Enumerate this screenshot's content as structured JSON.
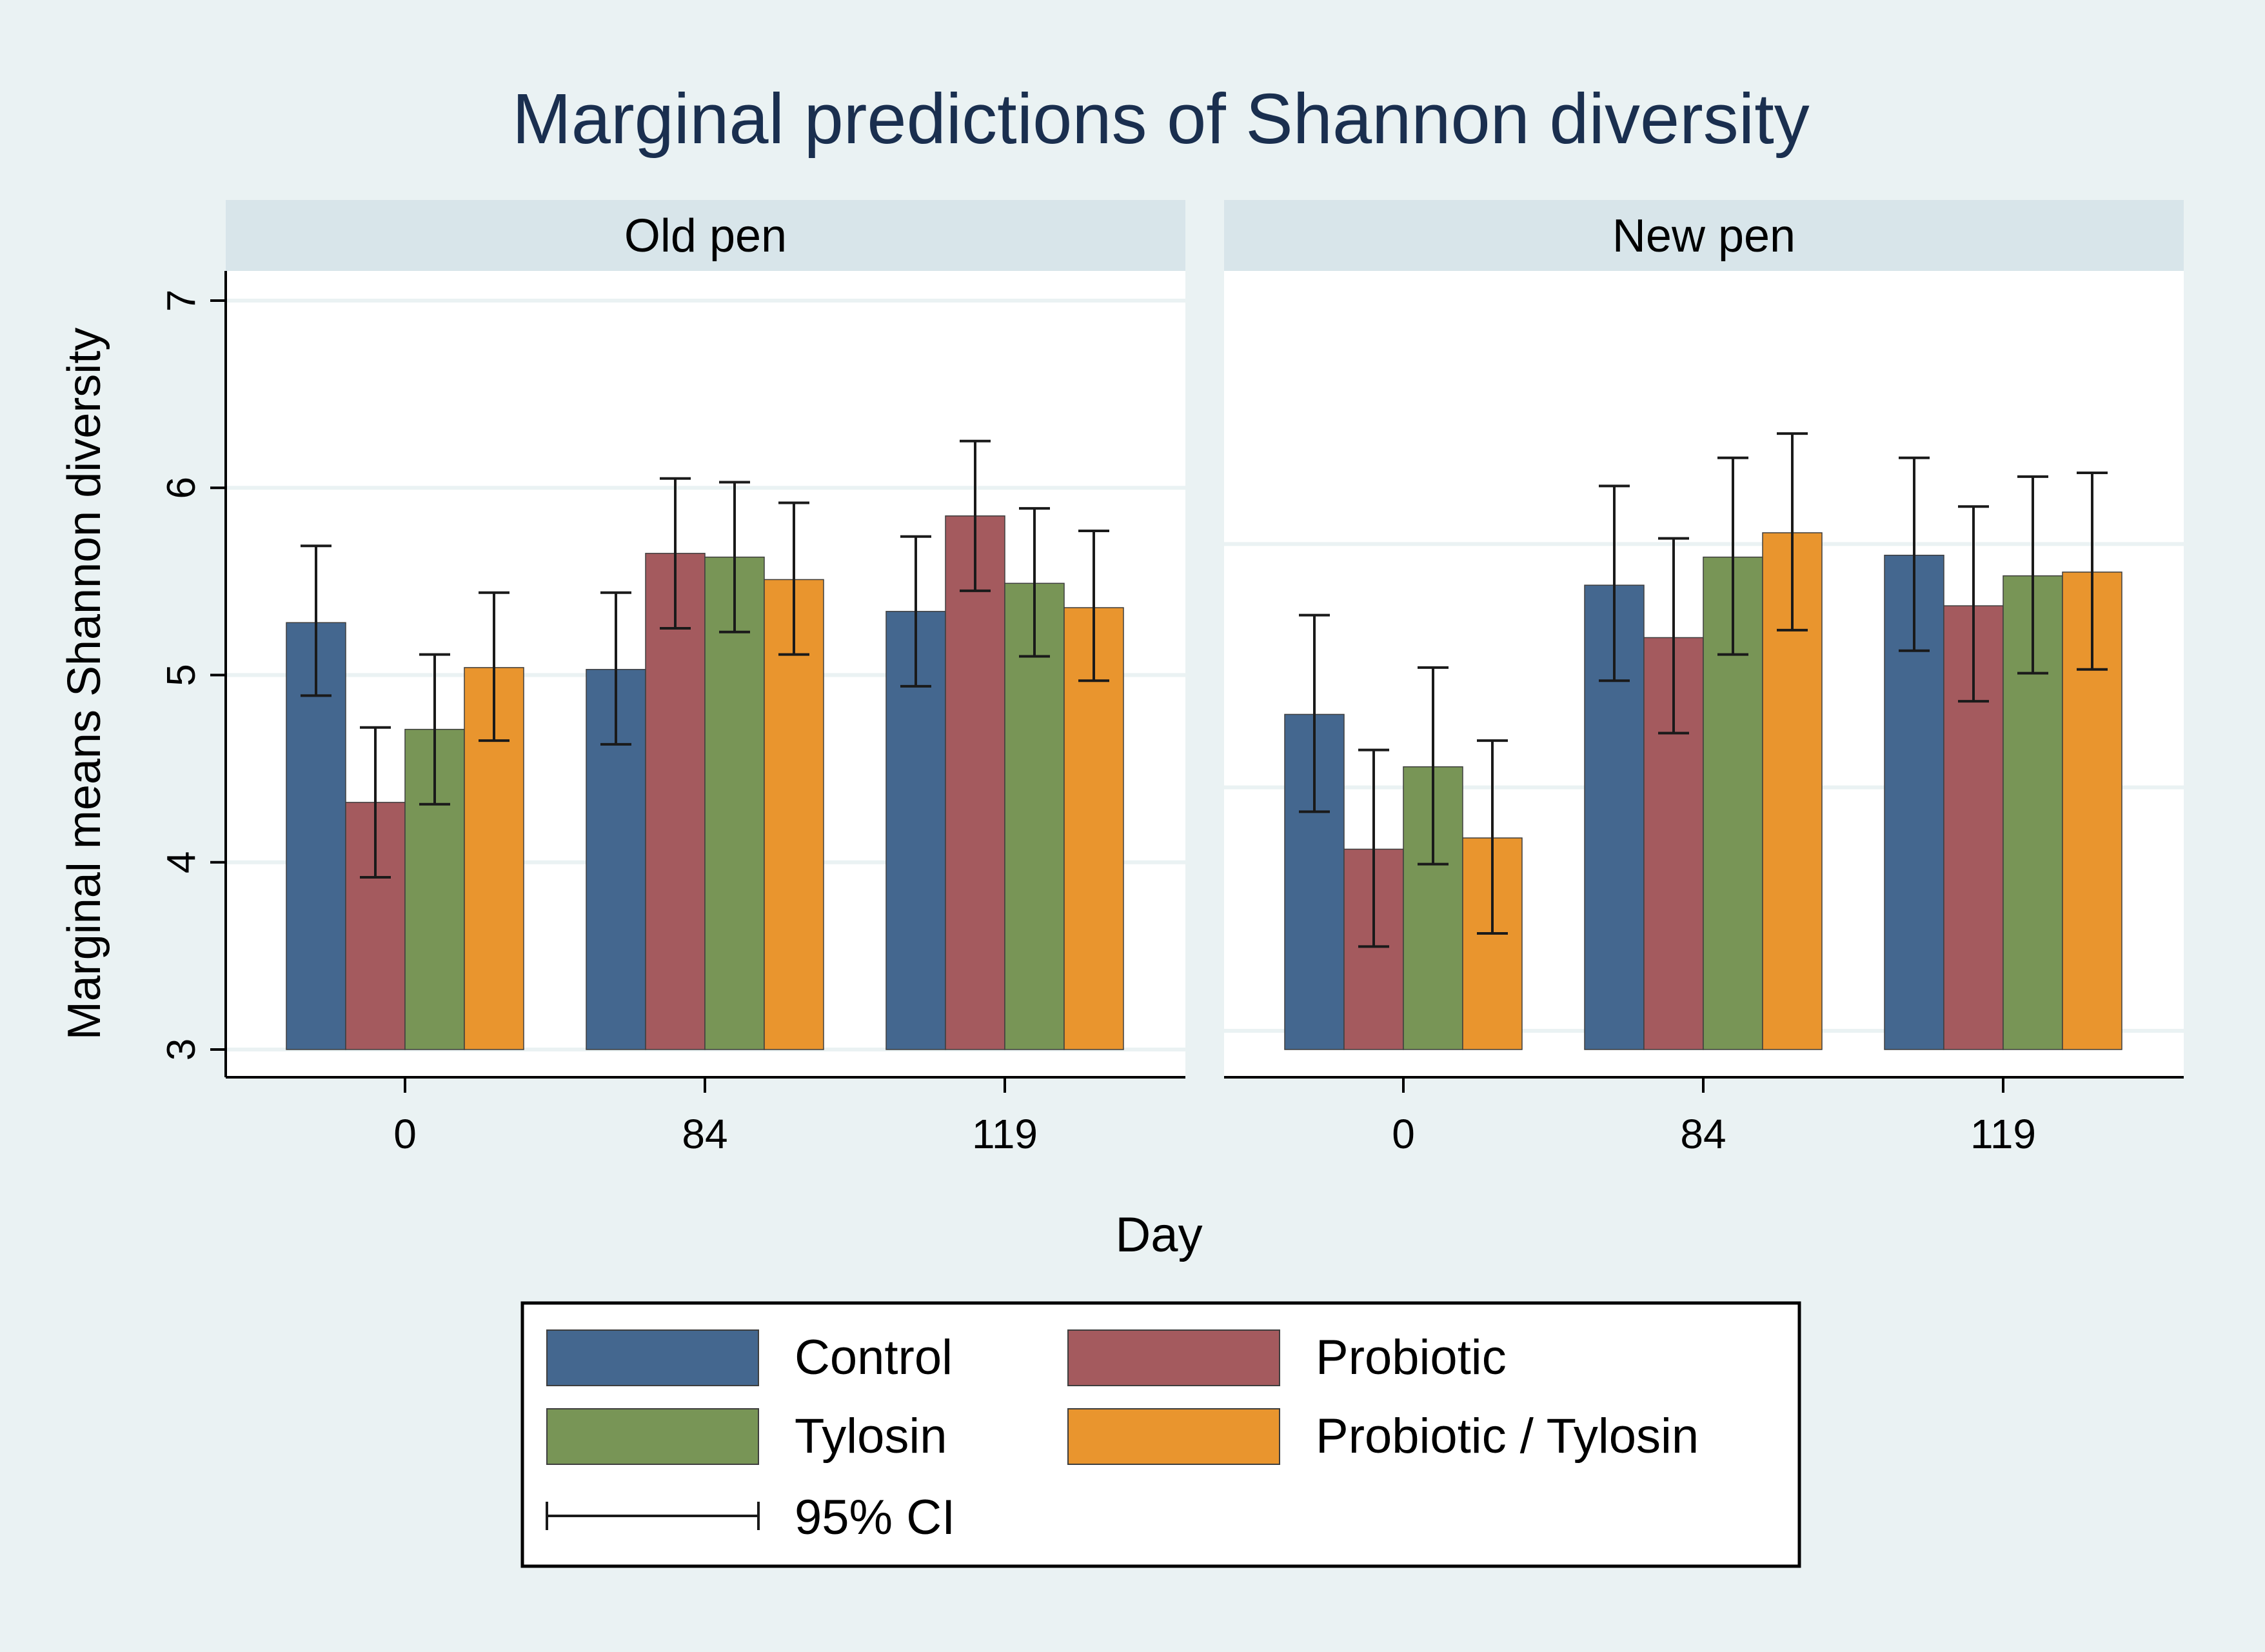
{
  "chart_data": {
    "type": "bar",
    "title": "Marginal predictions of Shannon diversity",
    "ylabel": "Marginal means Shannon diversity",
    "xlabel": "Day",
    "ylim": [
      3,
      7
    ],
    "yticks": [
      3,
      4,
      5,
      6,
      7
    ],
    "categories": [
      "0",
      "84",
      "119"
    ],
    "panels": [
      {
        "name": "Old pen",
        "series": [
          {
            "name": "Control",
            "values": [
              5.28,
              5.03,
              5.34
            ],
            "ci_low": [
              4.89,
              4.63,
              4.94
            ],
            "ci_high": [
              5.69,
              5.44,
              5.74
            ]
          },
          {
            "name": "Probiotic",
            "values": [
              4.32,
              5.65,
              5.85
            ],
            "ci_low": [
              3.92,
              5.25,
              5.45
            ],
            "ci_high": [
              4.72,
              6.05,
              6.25
            ]
          },
          {
            "name": "Tylosin",
            "values": [
              4.71,
              5.63,
              5.49
            ],
            "ci_low": [
              4.31,
              5.23,
              5.1
            ],
            "ci_high": [
              5.11,
              6.03,
              5.89
            ]
          },
          {
            "name": "Probiotic / Tylosin",
            "values": [
              5.04,
              5.51,
              5.36
            ],
            "ci_low": [
              4.65,
              5.11,
              4.97
            ],
            "ci_high": [
              5.44,
              5.92,
              5.77
            ]
          }
        ]
      },
      {
        "name": "New pen",
        "series": [
          {
            "name": "Control",
            "values": [
              4.79,
              5.48,
              5.64
            ],
            "ci_low": [
              4.27,
              4.97,
              5.13
            ],
            "ci_high": [
              5.32,
              6.01,
              6.16
            ]
          },
          {
            "name": "Probiotic",
            "values": [
              4.07,
              5.2,
              5.37
            ],
            "ci_low": [
              3.55,
              4.69,
              4.86
            ],
            "ci_high": [
              4.6,
              5.73,
              5.9
            ]
          },
          {
            "name": "Tylosin",
            "values": [
              4.51,
              5.63,
              5.53
            ],
            "ci_low": [
              3.99,
              5.11,
              5.01
            ],
            "ci_high": [
              5.04,
              6.16,
              6.06
            ]
          },
          {
            "name": "Probiotic / Tylosin",
            "values": [
              4.13,
              5.76,
              5.55
            ],
            "ci_low": [
              3.62,
              5.24,
              5.03
            ],
            "ci_high": [
              4.65,
              6.29,
              6.08
            ]
          }
        ]
      }
    ],
    "legend": {
      "position": "bottom",
      "ci_label": "95% CI"
    },
    "colors": {
      "Control": "#44678f",
      "Probiotic": "#a45a5e",
      "Tylosin": "#789556",
      "Probiotic / Tylosin": "#e9952e",
      "outer_bg": "#eaf2f3",
      "strip_bg": "#d8e5ea",
      "grid": "#eaf2f3",
      "axis": "#000000",
      "bar_edge": "#3e3e3e"
    }
  }
}
